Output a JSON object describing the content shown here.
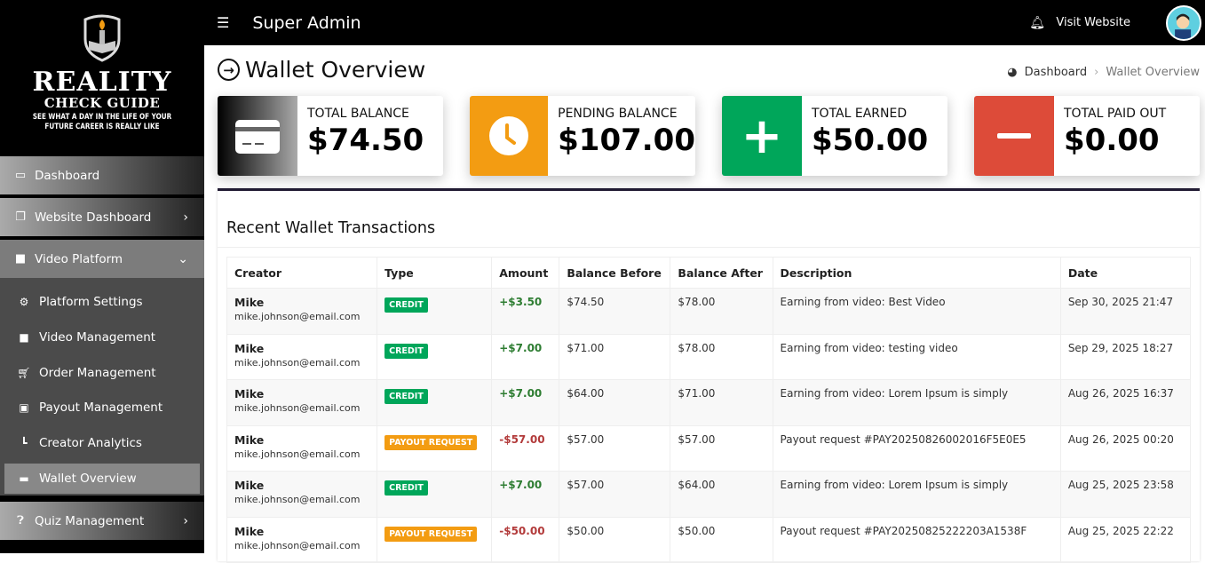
{
  "logo": {
    "line1": "REALITY",
    "line2": "CHECK GUIDE",
    "line3": "SEE WHAT A DAY IN THE LIFE OF YOUR",
    "line4": "FUTURE CAREER IS REALLY LIKE"
  },
  "sidebar": {
    "items": [
      {
        "label": "Dashboard",
        "icon": "laptop-icon"
      },
      {
        "label": "Website Dashboard",
        "icon": "copy-icon"
      },
      {
        "label": "Video Platform",
        "icon": "video-icon"
      },
      {
        "label": "Quiz Management",
        "icon": "question-icon"
      }
    ],
    "submenu": [
      {
        "label": "Platform Settings",
        "icon": "gear-icon"
      },
      {
        "label": "Video Management",
        "icon": "video-icon"
      },
      {
        "label": "Order Management",
        "icon": "cart-icon"
      },
      {
        "label": "Payout Management",
        "icon": "money-icon"
      },
      {
        "label": "Creator Analytics",
        "icon": "chart-icon"
      },
      {
        "label": "Wallet Overview",
        "icon": "wallet-icon",
        "active": true
      }
    ]
  },
  "topbar": {
    "title": "Super Admin",
    "visit": "Visit Website"
  },
  "page": {
    "title": "Wallet Overview",
    "breadcrumb": [
      "Dashboard",
      "Wallet Overview"
    ]
  },
  "cards": [
    {
      "label": "TOTAL BALANCE",
      "value": "$74.50",
      "color": "gradient-black"
    },
    {
      "label": "PENDING BALANCE",
      "value": "$107.00",
      "color": "#f39c12"
    },
    {
      "label": "TOTAL EARNED",
      "value": "$50.00",
      "color": "#00a65a"
    },
    {
      "label": "TOTAL PAID OUT",
      "value": "$0.00",
      "color": "#dd4b39"
    }
  ],
  "transactions": {
    "title": "Recent Wallet Transactions",
    "columns": [
      "Creator",
      "Type",
      "Amount",
      "Balance Before",
      "Balance After",
      "Description",
      "Date"
    ],
    "rows": [
      {
        "name": "Mike",
        "email": "mike.johnson@email.com",
        "type": "CREDIT",
        "amount": "+$3.50",
        "before": "$74.50",
        "after": "$78.00",
        "desc": "Earning from video: Best Video",
        "date": "Sep 30, 2025 21:47"
      },
      {
        "name": "Mike",
        "email": "mike.johnson@email.com",
        "type": "CREDIT",
        "amount": "+$7.00",
        "before": "$71.00",
        "after": "$78.00",
        "desc": "Earning from video: testing video",
        "date": "Sep 29, 2025 18:27"
      },
      {
        "name": "Mike",
        "email": "mike.johnson@email.com",
        "type": "CREDIT",
        "amount": "+$7.00",
        "before": "$64.00",
        "after": "$71.00",
        "desc": "Earning from video: Lorem Ipsum is simply",
        "date": "Aug 26, 2025 16:37"
      },
      {
        "name": "Mike",
        "email": "mike.johnson@email.com",
        "type": "PAYOUT REQUEST",
        "amount": "-$57.00",
        "before": "$57.00",
        "after": "$57.00",
        "desc": "Payout request #PAY20250826002016F5E0E5",
        "date": "Aug 26, 2025 00:20"
      },
      {
        "name": "Mike",
        "email": "mike.johnson@email.com",
        "type": "CREDIT",
        "amount": "+$7.00",
        "before": "$57.00",
        "after": "$64.00",
        "desc": "Earning from video: Lorem Ipsum is simply",
        "date": "Aug 25, 2025 23:58"
      },
      {
        "name": "Mike",
        "email": "mike.johnson@email.com",
        "type": "PAYOUT REQUEST",
        "amount": "-$50.00",
        "before": "$50.00",
        "after": "$50.00",
        "desc": "Payout request #PAY20250825222203A1538F",
        "date": "Aug 25, 2025 22:22"
      }
    ]
  },
  "colors": {
    "credit": "#00a65a",
    "payout": "#f39c12",
    "positive": "#2e7d32",
    "negative": "#b23a3a"
  }
}
